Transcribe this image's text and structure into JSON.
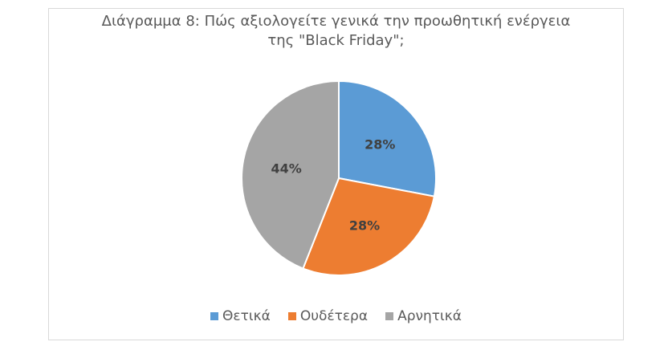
{
  "chart_data": {
    "type": "pie",
    "title_line1": "Διάγραμμα 8: Πώς αξιολογείτε γενικά την προωθητική ενέργεια",
    "title_line2": "της \"Black Friday\";",
    "slices": [
      {
        "label": "Θετικά",
        "value": 28,
        "display": "28%",
        "color": "#5b9bd5"
      },
      {
        "label": "Ουδέτερα",
        "value": 28,
        "display": "28%",
        "color": "#ed7d31"
      },
      {
        "label": "Αρνητικά",
        "value": 44,
        "display": "44%",
        "color": "#a5a5a5"
      }
    ],
    "legend_position": "bottom"
  }
}
